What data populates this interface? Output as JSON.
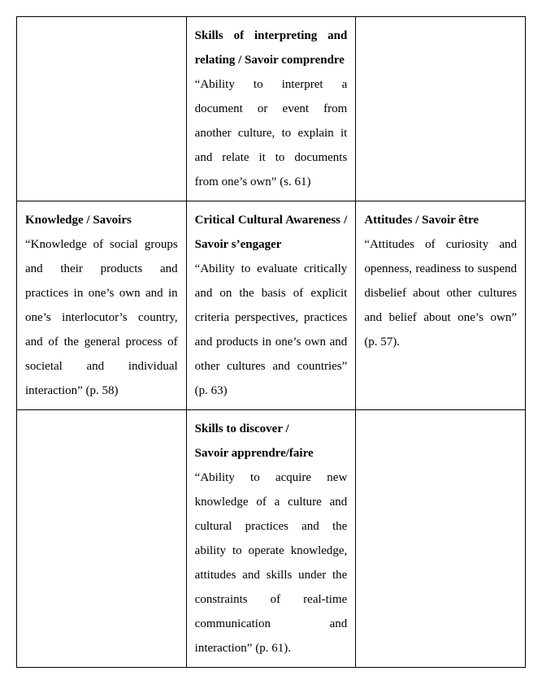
{
  "table": {
    "border_color": "#000000",
    "background_color": "#ffffff",
    "font_family": "Times New Roman",
    "font_size_pt": 12,
    "line_height": 2.0,
    "columns": 3,
    "rows": [
      {
        "cells": [
          {
            "title": "",
            "body": ""
          },
          {
            "title": "Skills of interpreting and relating / Savoir comprendre",
            "body": "“Ability to interpret a document or event from another culture, to explain it and relate it to documents from one’s own” (s. 61)"
          },
          {
            "title": "",
            "body": ""
          }
        ]
      },
      {
        "cells": [
          {
            "title": "Knowledge / Savoirs",
            "body": "“Knowledge of social groups and their products and practices in one’s own and in one’s interlocutor’s country, and of the general process of societal and individual interaction” (p. 58)"
          },
          {
            "title": "Critical Cultural Awareness / Savoir s’engager",
            "body": "“Ability to evaluate critically and on the basis of explicit criteria perspectives, practices and products in one’s own and other cultures and countries” (p. 63)"
          },
          {
            "title": "Attitudes / Savoir être",
            "body": "“Attitudes of curiosity and openness, readiness to suspend disbelief about other cultures and belief about one’s own” (p. 57)."
          }
        ]
      },
      {
        "cells": [
          {
            "title": "",
            "body": ""
          },
          {
            "title": "Skills to discover /",
            "title2": "Savoir apprendre/faire",
            "body": "“Ability to acquire new knowledge of a culture and cultural practices and the ability to operate knowledge, attitudes and skills under the constraints of real-time communication and interaction” (p. 61)."
          },
          {
            "title": "",
            "body": ""
          }
        ]
      }
    ]
  }
}
